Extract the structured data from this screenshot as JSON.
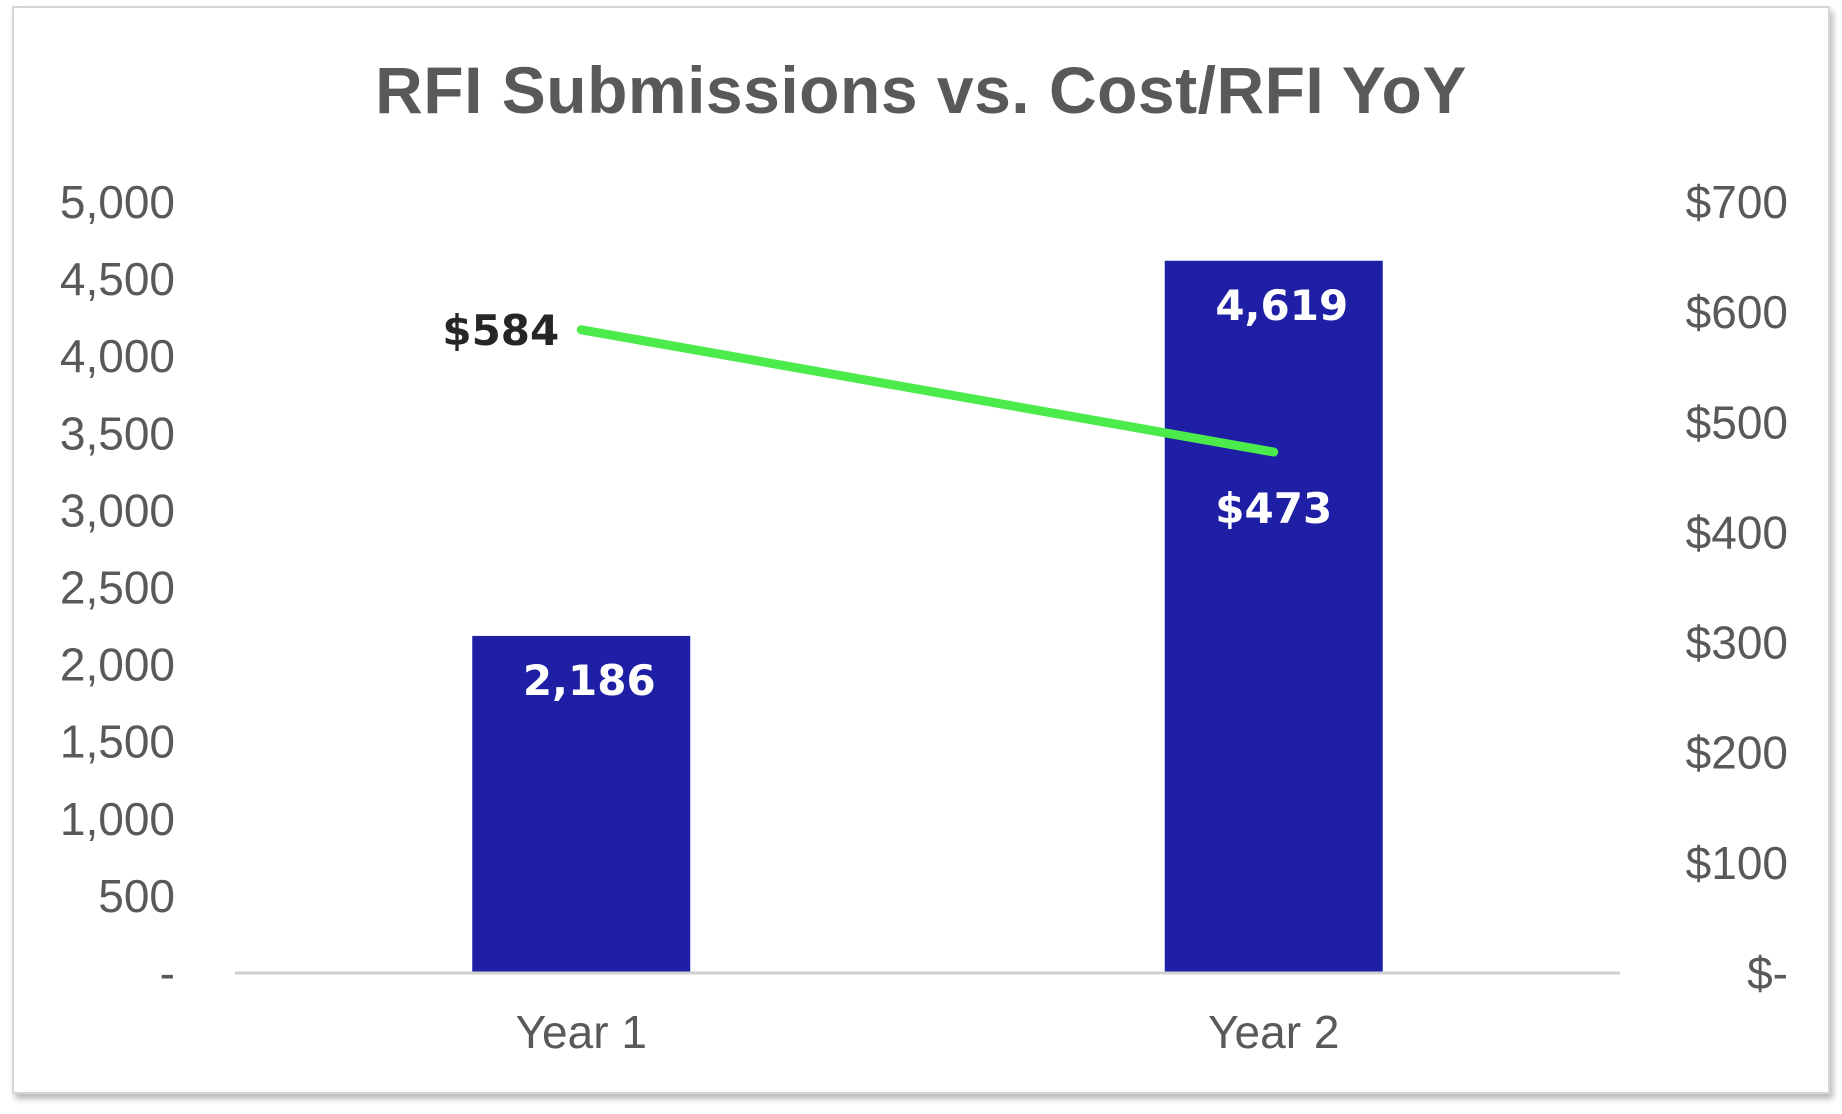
{
  "chart_data": {
    "type": "bar",
    "title": "RFI Submissions vs. Cost/RFI YoY",
    "categories": [
      "Year 1",
      "Year 2"
    ],
    "series": [
      {
        "type": "bar",
        "axis": "left",
        "values": [
          2186,
          4619
        ],
        "data_labels": [
          "2,186",
          "4,619"
        ],
        "color": "#1F1FA6"
      },
      {
        "type": "line",
        "axis": "right",
        "values": [
          584,
          473
        ],
        "data_labels": [
          "$584",
          "$473"
        ],
        "color": "#4CEB4C"
      }
    ],
    "left_axis": {
      "ylim": [
        0,
        5000
      ],
      "ticks": [
        0,
        500,
        1000,
        1500,
        2000,
        2500,
        3000,
        3500,
        4000,
        4500,
        5000
      ],
      "tick_labels": [
        "-",
        "500",
        "1,000",
        "1,500",
        "2,000",
        "2,500",
        "3,000",
        "3,500",
        "4,000",
        "4,500",
        "5,000"
      ]
    },
    "right_axis": {
      "ylim": [
        0,
        700
      ],
      "ticks": [
        0,
        100,
        200,
        300,
        400,
        500,
        600,
        700
      ],
      "tick_labels": [
        "$-",
        "$100",
        "$200",
        "$300",
        "$400",
        "$500",
        "$600",
        "$700"
      ]
    },
    "xlabel": "",
    "ylabel": "",
    "grid": false,
    "legend": "none"
  }
}
